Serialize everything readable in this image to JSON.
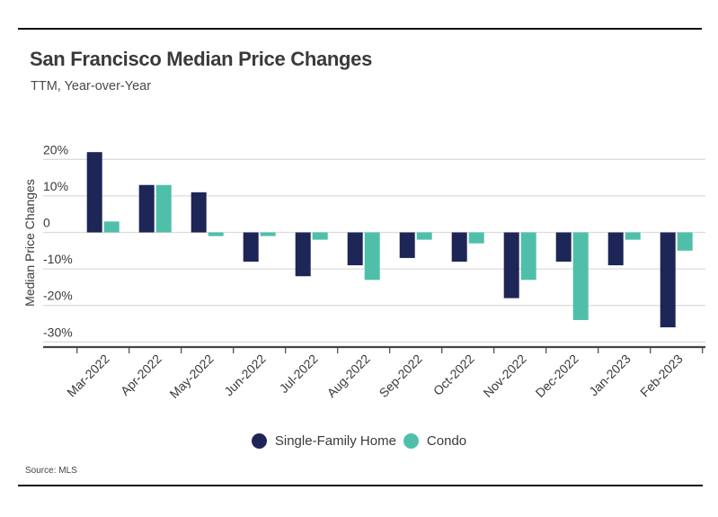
{
  "header": {
    "title": "San Francisco Median Price Changes",
    "subtitle": "TTM, Year-over-Year"
  },
  "footer": {
    "source": "Source: MLS"
  },
  "colors": {
    "single_family": "#1d2656",
    "condo": "#4fbfaa",
    "gridline": "#dcdcdc",
    "axis": "#444444"
  },
  "chart_data": {
    "type": "bar",
    "title": "San Francisco Median Price Changes",
    "subtitle": "TTM, Year-over-Year",
    "xlabel": "",
    "ylabel": "Median Price Changes",
    "ylim": [
      -30,
      20
    ],
    "yticks": [
      20,
      10,
      0,
      -10,
      -20,
      -30
    ],
    "ytick_labels": [
      "20%",
      "10%",
      "0",
      "-10%",
      "-20%",
      "-30%"
    ],
    "grid": true,
    "legend_position": "bottom",
    "categories": [
      "Mar-2022",
      "Apr-2022",
      "May-2022",
      "Jun-2022",
      "Jul-2022",
      "Aug-2022",
      "Sep-2022",
      "Oct-2022",
      "Nov-2022",
      "Dec-2022",
      "Jan-2023",
      "Feb-2023"
    ],
    "series": [
      {
        "name": "Single-Family Home",
        "values": [
          22,
          13,
          11,
          -8,
          -12,
          -9,
          -7,
          -8,
          -18,
          -8,
          -9,
          -26
        ]
      },
      {
        "name": "Condo",
        "values": [
          3,
          13,
          -1,
          -1,
          -2,
          -13,
          -2,
          -3,
          -13,
          -24,
          -2,
          -5
        ]
      }
    ],
    "source": "Source: MLS"
  }
}
